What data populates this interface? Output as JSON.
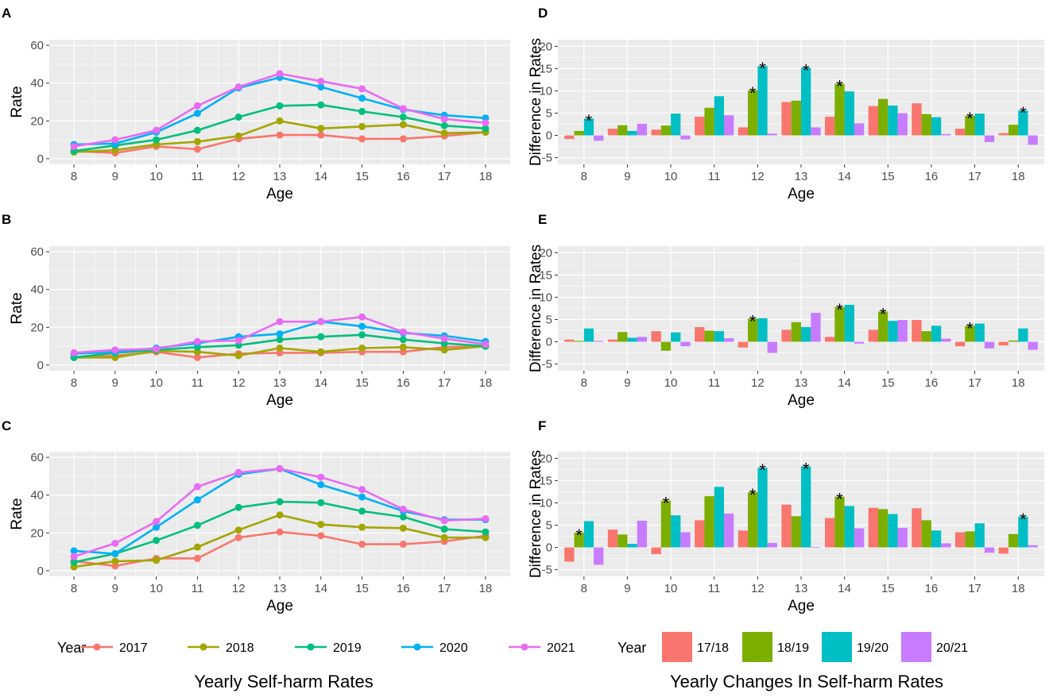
{
  "colors": {
    "panel_bg": "#EBEBEB",
    "grid": "#FFFFFF",
    "axis_text": "#4D4D4D",
    "years": [
      "#F8766D",
      "#A3A500",
      "#00BF7D",
      "#00B0F6",
      "#E76BF3"
    ],
    "changes": [
      "#F8766D",
      "#7CAE00",
      "#00BFC4",
      "#C77CFF"
    ]
  },
  "left_title": "Yearly Self-harm Rates",
  "right_title": "Yearly Changes In Self-harm Rates",
  "left_legend": {
    "title": "Year",
    "labels": [
      "2017",
      "2018",
      "2019",
      "2020",
      "2021"
    ]
  },
  "right_legend": {
    "title": "Year",
    "labels": [
      "17/18",
      "18/19",
      "19/20",
      "20/21"
    ]
  },
  "chart_data": [
    {
      "panel": "A",
      "type": "line",
      "xlabel": "Age",
      "ylabel": "Rate",
      "ylim": [
        0,
        60
      ],
      "yticks": [
        0,
        20,
        40,
        60
      ],
      "x": [
        8,
        9,
        10,
        11,
        12,
        13,
        14,
        15,
        16,
        17,
        18
      ],
      "series": [
        {
          "name": "2017",
          "values": [
            4,
            3,
            6.5,
            5,
            10.5,
            12.5,
            12.5,
            10.5,
            10.5,
            12,
            14
          ]
        },
        {
          "name": "2018",
          "values": [
            3.5,
            4.5,
            7.5,
            9,
            12,
            20,
            16,
            17,
            18,
            13.5,
            14
          ]
        },
        {
          "name": "2019",
          "values": [
            4,
            7,
            10,
            15,
            22,
            28,
            28.5,
            25,
            22,
            17.5,
            16
          ]
        },
        {
          "name": "2020",
          "values": [
            7.5,
            8,
            14,
            24,
            37.5,
            43,
            38,
            32,
            26,
            23,
            21.5
          ]
        },
        {
          "name": "2021",
          "values": [
            6.5,
            10,
            15,
            28,
            38,
            45,
            41,
            37,
            26.5,
            21,
            19
          ]
        }
      ]
    },
    {
      "panel": "B",
      "type": "line",
      "xlabel": "Age",
      "ylabel": "Rate",
      "ylim": [
        0,
        60
      ],
      "yticks": [
        0,
        20,
        40,
        60
      ],
      "x": [
        8,
        9,
        10,
        11,
        12,
        13,
        14,
        15,
        16,
        17,
        18
      ],
      "series": [
        {
          "name": "2017",
          "values": [
            4,
            5,
            7,
            4,
            6,
            6.5,
            6.5,
            7,
            7,
            9.5,
            10
          ]
        },
        {
          "name": "2018",
          "values": [
            4,
            4,
            7.5,
            7,
            5,
            9,
            7,
            9,
            9.5,
            8,
            10
          ]
        },
        {
          "name": "2019",
          "values": [
            4,
            6.5,
            8,
            9.5,
            10.5,
            13.5,
            15,
            16,
            13.5,
            11.5,
            10
          ]
        },
        {
          "name": "2020",
          "values": [
            6,
            7,
            9,
            11.5,
            15,
            16.5,
            23,
            20.5,
            17,
            15.5,
            12.5
          ]
        },
        {
          "name": "2021",
          "values": [
            6.5,
            8,
            8.5,
            12.5,
            13,
            23,
            23,
            25.5,
            17.5,
            14,
            11
          ]
        }
      ]
    },
    {
      "panel": "C",
      "type": "line",
      "xlabel": "Age",
      "ylabel": "Rate",
      "ylim": [
        0,
        60
      ],
      "yticks": [
        0,
        20,
        40,
        60
      ],
      "x": [
        8,
        9,
        10,
        11,
        12,
        13,
        14,
        15,
        16,
        17,
        18
      ],
      "series": [
        {
          "name": "2017",
          "values": [
            5,
            2.5,
            6.5,
            6.5,
            17.5,
            20.5,
            18.5,
            14,
            14,
            15.5,
            18.5
          ]
        },
        {
          "name": "2018",
          "values": [
            2,
            5,
            5.5,
            12.5,
            21.5,
            29.5,
            24.5,
            23,
            22.5,
            17.5,
            17.5
          ]
        },
        {
          "name": "2019",
          "values": [
            4.5,
            9,
            16,
            24,
            33.5,
            36.5,
            36,
            31.5,
            28.5,
            22,
            20.5
          ]
        },
        {
          "name": "2020",
          "values": [
            10.5,
            9,
            23,
            37.5,
            51,
            54,
            45.5,
            39,
            31.5,
            27,
            27
          ]
        },
        {
          "name": "2021",
          "values": [
            7.5,
            14.5,
            26,
            44.5,
            52,
            54,
            49.5,
            43,
            32.5,
            26.5,
            27.5
          ]
        }
      ]
    },
    {
      "panel": "D",
      "type": "bar",
      "xlabel": "Age",
      "ylabel": "Difference in Rates",
      "ylim": [
        -5,
        20
      ],
      "yticks": [
        -5,
        0,
        5,
        10,
        15,
        20
      ],
      "categories": [
        "8",
        "9",
        "10",
        "11",
        "12",
        "13",
        "14",
        "15",
        "16",
        "17",
        "18"
      ],
      "series": [
        {
          "name": "17/18",
          "values": [
            -0.8,
            1.5,
            1.3,
            4.2,
            1.8,
            7.5,
            4.2,
            6.6,
            7.2,
            1.5,
            0.5
          ],
          "sig": [
            false,
            false,
            false,
            false,
            false,
            false,
            false,
            false,
            false,
            false,
            false
          ]
        },
        {
          "name": "18/19",
          "values": [
            1.0,
            2.3,
            2.2,
            6.2,
            10.1,
            7.8,
            11.6,
            8.2,
            4.8,
            4.4,
            2.4
          ],
          "sig": [
            false,
            false,
            false,
            false,
            true,
            false,
            true,
            false,
            false,
            true,
            false
          ]
        },
        {
          "name": "19/20",
          "values": [
            3.8,
            1.0,
            4.9,
            8.8,
            15.6,
            15.2,
            9.9,
            6.7,
            4.1,
            4.9,
            5.6
          ],
          "sig": [
            true,
            false,
            false,
            false,
            true,
            true,
            false,
            false,
            false,
            false,
            true
          ]
        },
        {
          "name": "20/21",
          "values": [
            -1.2,
            2.6,
            -0.9,
            4.5,
            0.4,
            1.8,
            2.7,
            5.0,
            0.3,
            -1.5,
            -2.1
          ],
          "sig": [
            false,
            false,
            false,
            false,
            false,
            false,
            false,
            false,
            false,
            false,
            false
          ]
        }
      ],
      "sig_marker": "*"
    },
    {
      "panel": "E",
      "type": "bar",
      "xlabel": "Age",
      "ylabel": "Difference in Rates",
      "ylim": [
        -5,
        20
      ],
      "yticks": [
        -5,
        0,
        5,
        10,
        15,
        20
      ],
      "categories": [
        "8",
        "9",
        "10",
        "11",
        "12",
        "13",
        "14",
        "15",
        "16",
        "17",
        "18"
      ],
      "series": [
        {
          "name": "17/18",
          "values": [
            0.5,
            0.5,
            2.4,
            3.3,
            -1.3,
            2.7,
            1.1,
            2.7,
            4.9,
            -1.0,
            -0.8
          ],
          "sig": [
            false,
            false,
            false,
            false,
            false,
            false,
            false,
            false,
            false,
            false,
            false
          ]
        },
        {
          "name": "18/19",
          "values": [
            0.2,
            2.2,
            -2.0,
            2.5,
            5.2,
            4.4,
            7.8,
            6.8,
            2.4,
            3.6,
            0.3
          ],
          "sig": [
            false,
            false,
            false,
            false,
            true,
            false,
            true,
            true,
            false,
            true,
            false
          ]
        },
        {
          "name": "19/20",
          "values": [
            3.0,
            0.9,
            2.1,
            2.4,
            5.3,
            3.3,
            8.3,
            4.7,
            3.6,
            4.1,
            3.0
          ],
          "sig": [
            false,
            false,
            false,
            false,
            false,
            false,
            false,
            false,
            false,
            false,
            false
          ]
        },
        {
          "name": "20/21",
          "values": [
            0.2,
            1.1,
            -1.0,
            0.8,
            -2.5,
            6.5,
            -0.4,
            4.9,
            0.7,
            -1.5,
            -1.8
          ],
          "sig": [
            false,
            false,
            false,
            false,
            false,
            false,
            false,
            false,
            false,
            false,
            false
          ]
        }
      ],
      "sig_marker": "*"
    },
    {
      "panel": "F",
      "type": "bar",
      "xlabel": "Age",
      "ylabel": "Difference in Rates",
      "ylim": [
        -5,
        20
      ],
      "yticks": [
        -5,
        0,
        5,
        10,
        15,
        20
      ],
      "categories": [
        "8",
        "9",
        "10",
        "11",
        "12",
        "13",
        "14",
        "15",
        "16",
        "17",
        "18"
      ],
      "series": [
        {
          "name": "17/18",
          "values": [
            -3.2,
            4.0,
            -1.5,
            6.1,
            3.8,
            9.6,
            6.6,
            8.9,
            8.8,
            3.4,
            -1.4
          ],
          "sig": [
            false,
            false,
            false,
            false,
            false,
            false,
            false,
            false,
            false,
            false,
            false
          ]
        },
        {
          "name": "18/19",
          "values": [
            3.3,
            2.9,
            10.5,
            11.5,
            12.4,
            7.0,
            11.4,
            8.6,
            6.1,
            3.6,
            3.0
          ],
          "sig": [
            true,
            false,
            true,
            false,
            true,
            false,
            true,
            false,
            false,
            false,
            false
          ]
        },
        {
          "name": "19/20",
          "values": [
            5.9,
            0.8,
            7.2,
            13.6,
            17.9,
            18.2,
            9.3,
            7.5,
            3.8,
            5.4,
            6.9
          ],
          "sig": [
            false,
            false,
            false,
            false,
            true,
            true,
            false,
            false,
            false,
            false,
            true
          ]
        },
        {
          "name": "20/21",
          "values": [
            -3.9,
            6.0,
            3.4,
            7.6,
            1.0,
            0.1,
            4.3,
            4.4,
            0.9,
            -1.2,
            0.5
          ],
          "sig": [
            false,
            false,
            false,
            false,
            false,
            false,
            false,
            false,
            false,
            false,
            false
          ]
        }
      ],
      "sig_marker": "*"
    }
  ]
}
